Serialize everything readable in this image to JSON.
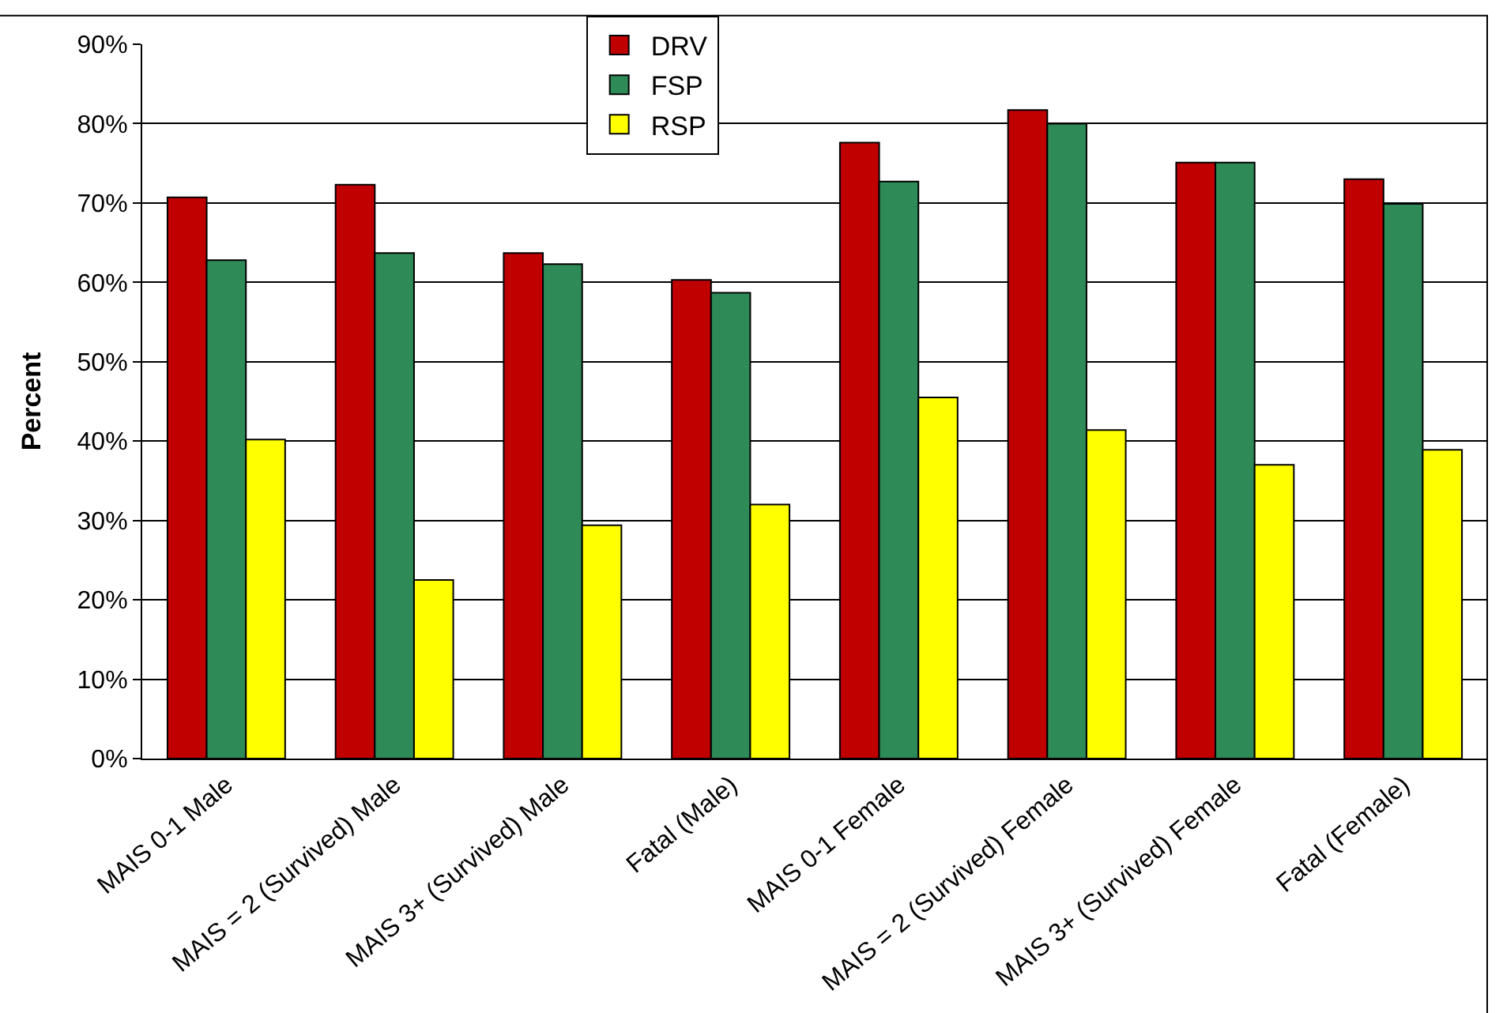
{
  "chart_data": {
    "type": "bar",
    "ylabel": "Percent",
    "categories": [
      "MAIS 0-1 Male",
      "MAIS = 2 (Survived) Male",
      "MAIS 3+ (Survived) Male",
      "Fatal (Male)",
      "MAIS 0-1 Female",
      "MAIS = 2 (Survived) Female",
      "MAIS 3+ (Survived) Female",
      "Fatal (Female)"
    ],
    "series": [
      {
        "name": "DRV",
        "color": "#c00000",
        "values": [
          70.7,
          72.3,
          63.7,
          60.3,
          77.6,
          81.7,
          75.1,
          73.0
        ]
      },
      {
        "name": "FSP",
        "color": "#2e8b57",
        "values": [
          62.8,
          63.7,
          62.3,
          58.7,
          72.7,
          80.0,
          75.1,
          69.9
        ]
      },
      {
        "name": "RSP",
        "color": "#ffff00",
        "values": [
          40.2,
          22.5,
          29.4,
          32.0,
          45.5,
          41.4,
          37.0,
          38.9
        ]
      }
    ],
    "ylim": [
      0,
      90
    ],
    "yticks": [
      {
        "value": 0,
        "label": "0%"
      },
      {
        "value": 10,
        "label": "10%"
      },
      {
        "value": 20,
        "label": "20%"
      },
      {
        "value": 30,
        "label": "30%"
      },
      {
        "value": 40,
        "label": "40%"
      },
      {
        "value": 50,
        "label": "50%"
      },
      {
        "value": 60,
        "label": "60%"
      },
      {
        "value": 70,
        "label": "70%"
      },
      {
        "value": 80,
        "label": "80%"
      },
      {
        "value": 90,
        "label": "90%"
      }
    ],
    "grid": "y",
    "legend": "top"
  }
}
